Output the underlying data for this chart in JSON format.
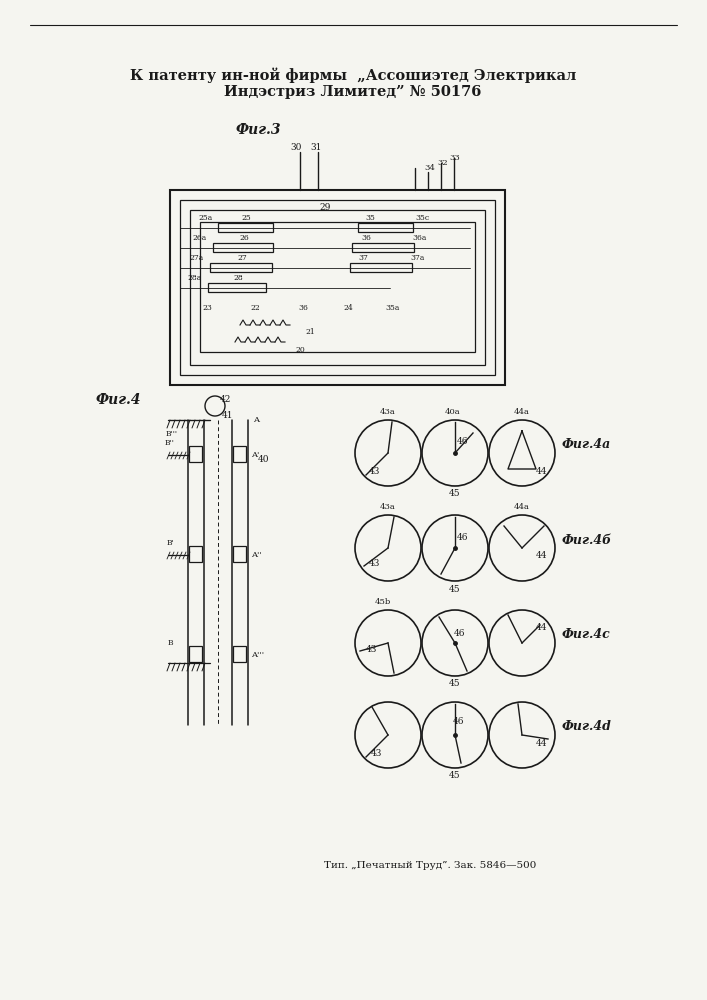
{
  "bg_color": "#f5f5f0",
  "line_color": "#1a1a1a",
  "title_line1": "К патенту ин-ной фирмы  „Ассошиэтед Электрикал",
  "title_line2": "Индэстриз Лимитед” № 50176",
  "fig3_label": "Фиг.3",
  "fig4_label": "Фиг.4",
  "fig4a_label": "Фиг.4a",
  "fig4b_label": "Фиг.4б",
  "fig4c_label": "Фиг.4c",
  "fig4d_label": "Фиг.4d",
  "footer": "Тип. „Печатный Труд”. Зак. 5846—500"
}
